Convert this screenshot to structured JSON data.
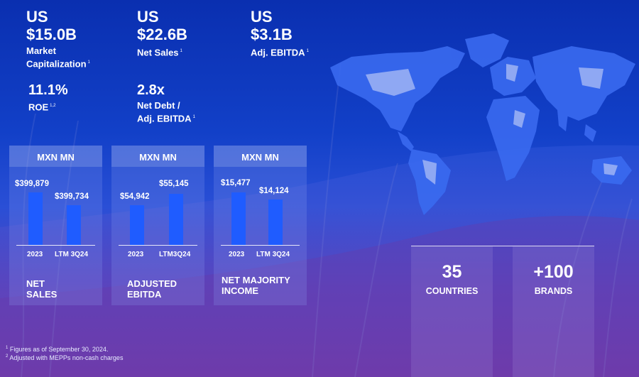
{
  "colors": {
    "accent_bar": "#1f5cff",
    "background_top": "#0a2fb0",
    "background_bottom": "#6a3aa8",
    "map_land": "#3a6af0"
  },
  "stats": [
    {
      "currency": "US",
      "value": "$15.0B",
      "label_line1": "Market",
      "label_line2": "Capitalization",
      "note": "1"
    },
    {
      "currency": "US",
      "value": "$22.6B",
      "label_line1": "Net Sales",
      "note": "1"
    },
    {
      "currency": "US",
      "value": "$3.1B",
      "label_line1": "Adj. EBITDA",
      "note": "1"
    }
  ],
  "stats2": [
    {
      "value": "11.1%",
      "label_line1": "ROE",
      "note": "1,2"
    },
    {
      "value": "2.8x",
      "label_line1": "Net Debt /",
      "label_line2": "Adj. EBITDA",
      "note": "1"
    }
  ],
  "panels": [
    {
      "unit": "MXN MN",
      "title_line1": "NET",
      "title_line2": "SALES",
      "bars": [
        {
          "label": "2023",
          "value": 399879,
          "display": "$399,879"
        },
        {
          "label": "LTM 3Q24",
          "value": 399734,
          "display": "$399,734"
        }
      ]
    },
    {
      "unit": "MXN MN",
      "title_line1": "ADJUSTED",
      "title_line2": "EBITDA",
      "bars": [
        {
          "label": "2023",
          "value": 54942,
          "display": "$54,942"
        },
        {
          "label": "LTM3Q24",
          "value": 55145,
          "display": "$55,145"
        }
      ]
    },
    {
      "unit": "MXN MN",
      "title_line1": "NET MAJORITY",
      "title_line2": "INCOME",
      "bars": [
        {
          "label": "2023",
          "value": 15477,
          "display": "$15,477"
        },
        {
          "label": "LTM 3Q24",
          "value": 14124,
          "display": "$14,124"
        }
      ]
    }
  ],
  "presence": [
    {
      "number": "35",
      "word": "COUNTRIES"
    },
    {
      "number": "+100",
      "word": "BRANDS"
    }
  ],
  "footnotes": [
    {
      "mark": "1",
      "text": "Figures as of September 30, 2024."
    },
    {
      "mark": "2",
      "text": "Adjusted with MEPPs non-cash charges"
    }
  ]
}
